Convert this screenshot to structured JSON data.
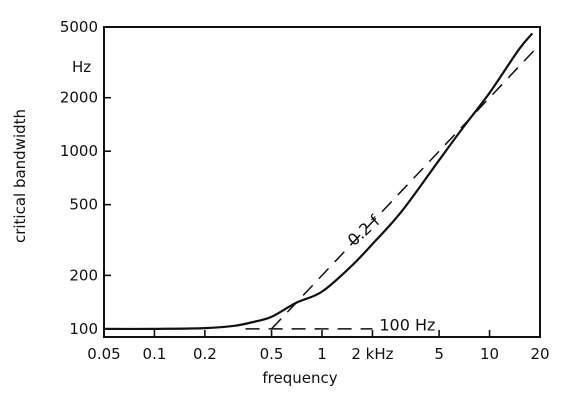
{
  "chart_data": {
    "type": "line",
    "title": "",
    "xlabel": "frequency",
    "ylabel": "critical bandwidth",
    "xscale": "log",
    "yscale": "log",
    "xlim": [
      0.05,
      20
    ],
    "ylim": [
      90,
      5000
    ],
    "grid": false,
    "x_ticks": [
      {
        "value": 0.05,
        "label": "0.05"
      },
      {
        "value": 0.1,
        "label": "0.1"
      },
      {
        "value": 0.2,
        "label": "0.2"
      },
      {
        "value": 0.5,
        "label": "0.5"
      },
      {
        "value": 1,
        "label": "1"
      },
      {
        "value": 2,
        "label": "2 kHz"
      },
      {
        "value": 5,
        "label": "5"
      },
      {
        "value": 10,
        "label": "10"
      },
      {
        "value": 20,
        "label": "20"
      }
    ],
    "y_ticks": [
      {
        "value": 100,
        "label": "100"
      },
      {
        "value": 200,
        "label": "200"
      },
      {
        "value": 500,
        "label": "500"
      },
      {
        "value": 1000,
        "label": "1000"
      },
      {
        "value": 2000,
        "label": "2000"
      },
      {
        "value": 5000,
        "label": "5000"
      }
    ],
    "y_unit_label": "Hz",
    "series": [
      {
        "style": "solid",
        "x": [
          0.05,
          0.1,
          0.2,
          0.3,
          0.4,
          0.5,
          0.7,
          1,
          1.5,
          2,
          3,
          5,
          7,
          10,
          15,
          18
        ],
        "y": [
          100,
          100,
          101,
          104,
          110,
          117,
          140,
          162,
          226,
          300,
          460,
          890,
          1370,
          2130,
          3750,
          4600
        ]
      },
      {
        "name": "0.2 f",
        "style": "dashed",
        "x": [
          0.5,
          20
        ],
        "y": [
          100,
          4000
        ]
      },
      {
        "name": "100 Hz",
        "style": "dashed",
        "x": [
          0.35,
          2
        ],
        "y": [
          100,
          100
        ]
      }
    ],
    "annotations": [
      {
        "text": "0.2 f",
        "x": 1.55,
        "y": 290
      },
      {
        "text": "100 Hz",
        "x": 2.2,
        "y": 98
      }
    ]
  }
}
